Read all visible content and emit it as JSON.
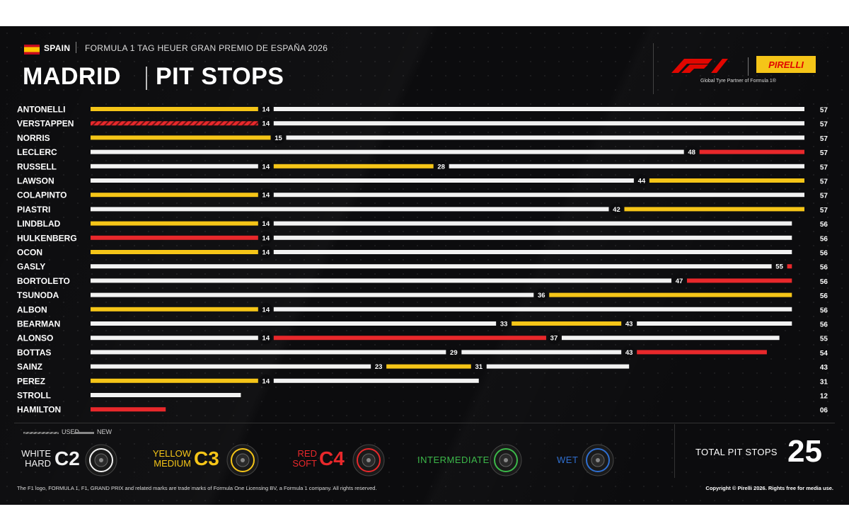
{
  "header": {
    "country": "SPAIN",
    "event": "FORMULA 1 TAG HEUER GRAN PREMIO DE ESPAÑA 2026",
    "city": "MADRID",
    "title": "PIT STOPS",
    "partner_tagline": "Global Tyre Partner of Formula 1®",
    "pirelli_label": "PIRELLI"
  },
  "colors": {
    "hard": "#f2f2f2",
    "medium": "#f5c518",
    "soft": "#e8282b",
    "intermediate": "#3cb94a",
    "wet": "#2f6fd1",
    "background": "#0c0c0e",
    "f1_red": "#e10600"
  },
  "chart_data": {
    "type": "bar",
    "title": "PIT STOPS",
    "xlim": [
      0,
      57
    ],
    "compounds": {
      "H": "hard",
      "M": "medium",
      "S": "soft"
    },
    "drivers": [
      {
        "name": "ANTONELLI",
        "total": "57",
        "stints": [
          {
            "c": "M",
            "from": 0,
            "to": 14,
            "used": false
          },
          {
            "c": "H",
            "from": 14,
            "to": 57,
            "used": false
          }
        ],
        "stops": [
          "14"
        ]
      },
      {
        "name": "VERSTAPPEN",
        "total": "57",
        "stints": [
          {
            "c": "S",
            "from": 0,
            "to": 14,
            "used": true
          },
          {
            "c": "H",
            "from": 14,
            "to": 57,
            "used": false
          }
        ],
        "stops": [
          "14"
        ]
      },
      {
        "name": "NORRIS",
        "total": "57",
        "stints": [
          {
            "c": "M",
            "from": 0,
            "to": 15,
            "used": false
          },
          {
            "c": "H",
            "from": 15,
            "to": 57,
            "used": false
          }
        ],
        "stops": [
          "15"
        ]
      },
      {
        "name": "LECLERC",
        "total": "57",
        "stints": [
          {
            "c": "H",
            "from": 0,
            "to": 48,
            "used": false
          },
          {
            "c": "S",
            "from": 48,
            "to": 57,
            "used": false
          }
        ],
        "stops": [
          "48"
        ]
      },
      {
        "name": "RUSSELL",
        "total": "57",
        "stints": [
          {
            "c": "H",
            "from": 0,
            "to": 14,
            "used": false
          },
          {
            "c": "M",
            "from": 14,
            "to": 28,
            "used": false
          },
          {
            "c": "H",
            "from": 28,
            "to": 57,
            "used": false
          }
        ],
        "stops": [
          "14",
          "28"
        ]
      },
      {
        "name": "LAWSON",
        "total": "57",
        "stints": [
          {
            "c": "H",
            "from": 0,
            "to": 44,
            "used": false
          },
          {
            "c": "M",
            "from": 44,
            "to": 57,
            "used": false
          }
        ],
        "stops": [
          "44"
        ]
      },
      {
        "name": "COLAPINTO",
        "total": "57",
        "stints": [
          {
            "c": "M",
            "from": 0,
            "to": 14,
            "used": false
          },
          {
            "c": "H",
            "from": 14,
            "to": 57,
            "used": false
          }
        ],
        "stops": [
          "14"
        ]
      },
      {
        "name": "PIASTRI",
        "total": "57",
        "stints": [
          {
            "c": "H",
            "from": 0,
            "to": 42,
            "used": false
          },
          {
            "c": "M",
            "from": 42,
            "to": 57,
            "used": false
          }
        ],
        "stops": [
          "42"
        ]
      },
      {
        "name": "LINDBLAD",
        "total": "56",
        "stints": [
          {
            "c": "M",
            "from": 0,
            "to": 14,
            "used": false
          },
          {
            "c": "H",
            "from": 14,
            "to": 56,
            "used": false
          }
        ],
        "stops": [
          "14"
        ]
      },
      {
        "name": "HULKENBERG",
        "total": "56",
        "stints": [
          {
            "c": "S",
            "from": 0,
            "to": 14,
            "used": false
          },
          {
            "c": "H",
            "from": 14,
            "to": 56,
            "used": false
          }
        ],
        "stops": [
          "14"
        ]
      },
      {
        "name": "OCON",
        "total": "56",
        "stints": [
          {
            "c": "M",
            "from": 0,
            "to": 14,
            "used": false
          },
          {
            "c": "H",
            "from": 14,
            "to": 56,
            "used": false
          }
        ],
        "stops": [
          "14"
        ]
      },
      {
        "name": "GASLY",
        "total": "56",
        "stints": [
          {
            "c": "H",
            "from": 0,
            "to": 55,
            "used": false
          },
          {
            "c": "S",
            "from": 55,
            "to": 56,
            "used": false
          }
        ],
        "stops": [
          "55"
        ]
      },
      {
        "name": "BORTOLETO",
        "total": "56",
        "stints": [
          {
            "c": "H",
            "from": 0,
            "to": 47,
            "used": false
          },
          {
            "c": "S",
            "from": 47,
            "to": 56,
            "used": false
          }
        ],
        "stops": [
          "47"
        ]
      },
      {
        "name": "TSUNODA",
        "total": "56",
        "stints": [
          {
            "c": "H",
            "from": 0,
            "to": 36,
            "used": false
          },
          {
            "c": "M",
            "from": 36,
            "to": 56,
            "used": false
          }
        ],
        "stops": [
          "36"
        ]
      },
      {
        "name": "ALBON",
        "total": "56",
        "stints": [
          {
            "c": "M",
            "from": 0,
            "to": 14,
            "used": false
          },
          {
            "c": "H",
            "from": 14,
            "to": 56,
            "used": false
          }
        ],
        "stops": [
          "14"
        ]
      },
      {
        "name": "BEARMAN",
        "total": "56",
        "stints": [
          {
            "c": "H",
            "from": 0,
            "to": 33,
            "used": false
          },
          {
            "c": "M",
            "from": 33,
            "to": 43,
            "used": false
          },
          {
            "c": "H",
            "from": 43,
            "to": 56,
            "used": false
          }
        ],
        "stops": [
          "33",
          "43"
        ]
      },
      {
        "name": "ALONSO",
        "total": "55",
        "stints": [
          {
            "c": "H",
            "from": 0,
            "to": 14,
            "used": false
          },
          {
            "c": "S",
            "from": 14,
            "to": 37,
            "used": false
          },
          {
            "c": "H",
            "from": 37,
            "to": 55,
            "used": false
          }
        ],
        "stops": [
          "14",
          "37"
        ]
      },
      {
        "name": "BOTTAS",
        "total": "54",
        "stints": [
          {
            "c": "H",
            "from": 0,
            "to": 29,
            "used": false
          },
          {
            "c": "H",
            "from": 29,
            "to": 43,
            "used": false
          },
          {
            "c": "S",
            "from": 43,
            "to": 54,
            "used": false
          }
        ],
        "stops": [
          "29",
          "43"
        ]
      },
      {
        "name": "SAINZ",
        "total": "43",
        "stints": [
          {
            "c": "H",
            "from": 0,
            "to": 23,
            "used": false
          },
          {
            "c": "M",
            "from": 23,
            "to": 31,
            "used": false
          },
          {
            "c": "H",
            "from": 31,
            "to": 43,
            "used": false
          }
        ],
        "stops": [
          "23",
          "31"
        ]
      },
      {
        "name": "PEREZ",
        "total": "31",
        "stints": [
          {
            "c": "M",
            "from": 0,
            "to": 14,
            "used": false
          },
          {
            "c": "H",
            "from": 14,
            "to": 31,
            "used": false
          }
        ],
        "stops": [
          "14"
        ]
      },
      {
        "name": "STROLL",
        "total": "12",
        "stints": [
          {
            "c": "H",
            "from": 0,
            "to": 12,
            "used": false
          }
        ],
        "stops": []
      },
      {
        "name": "HAMILTON",
        "total": "06",
        "stints": [
          {
            "c": "S",
            "from": 0,
            "to": 6,
            "used": false
          }
        ],
        "stops": []
      }
    ]
  },
  "legend": {
    "used": "USED",
    "new": "NEW",
    "tyres": [
      {
        "top": "WHITE",
        "bottom": "HARD",
        "code": "C2",
        "compound": "hard"
      },
      {
        "top": "YELLOW",
        "bottom": "MEDIUM",
        "code": "C3",
        "compound": "medium"
      },
      {
        "top": "RED",
        "bottom": "SOFT",
        "code": "C4",
        "compound": "soft"
      },
      {
        "name": "INTERMEDIATE",
        "compound": "intermediate"
      },
      {
        "name": "WET",
        "compound": "wet"
      }
    ]
  },
  "total_pit_stops": {
    "label": "TOTAL PIT STOPS",
    "value": "25"
  },
  "footer": {
    "left": "The F1 logo, FORMULA 1, F1, GRAND PRIX and related marks are trade marks of Formula One Licensing BV, a Formula 1 company. All rights reserved.",
    "right": "Copyright © Pirelli 2026. Rights free for media use."
  }
}
